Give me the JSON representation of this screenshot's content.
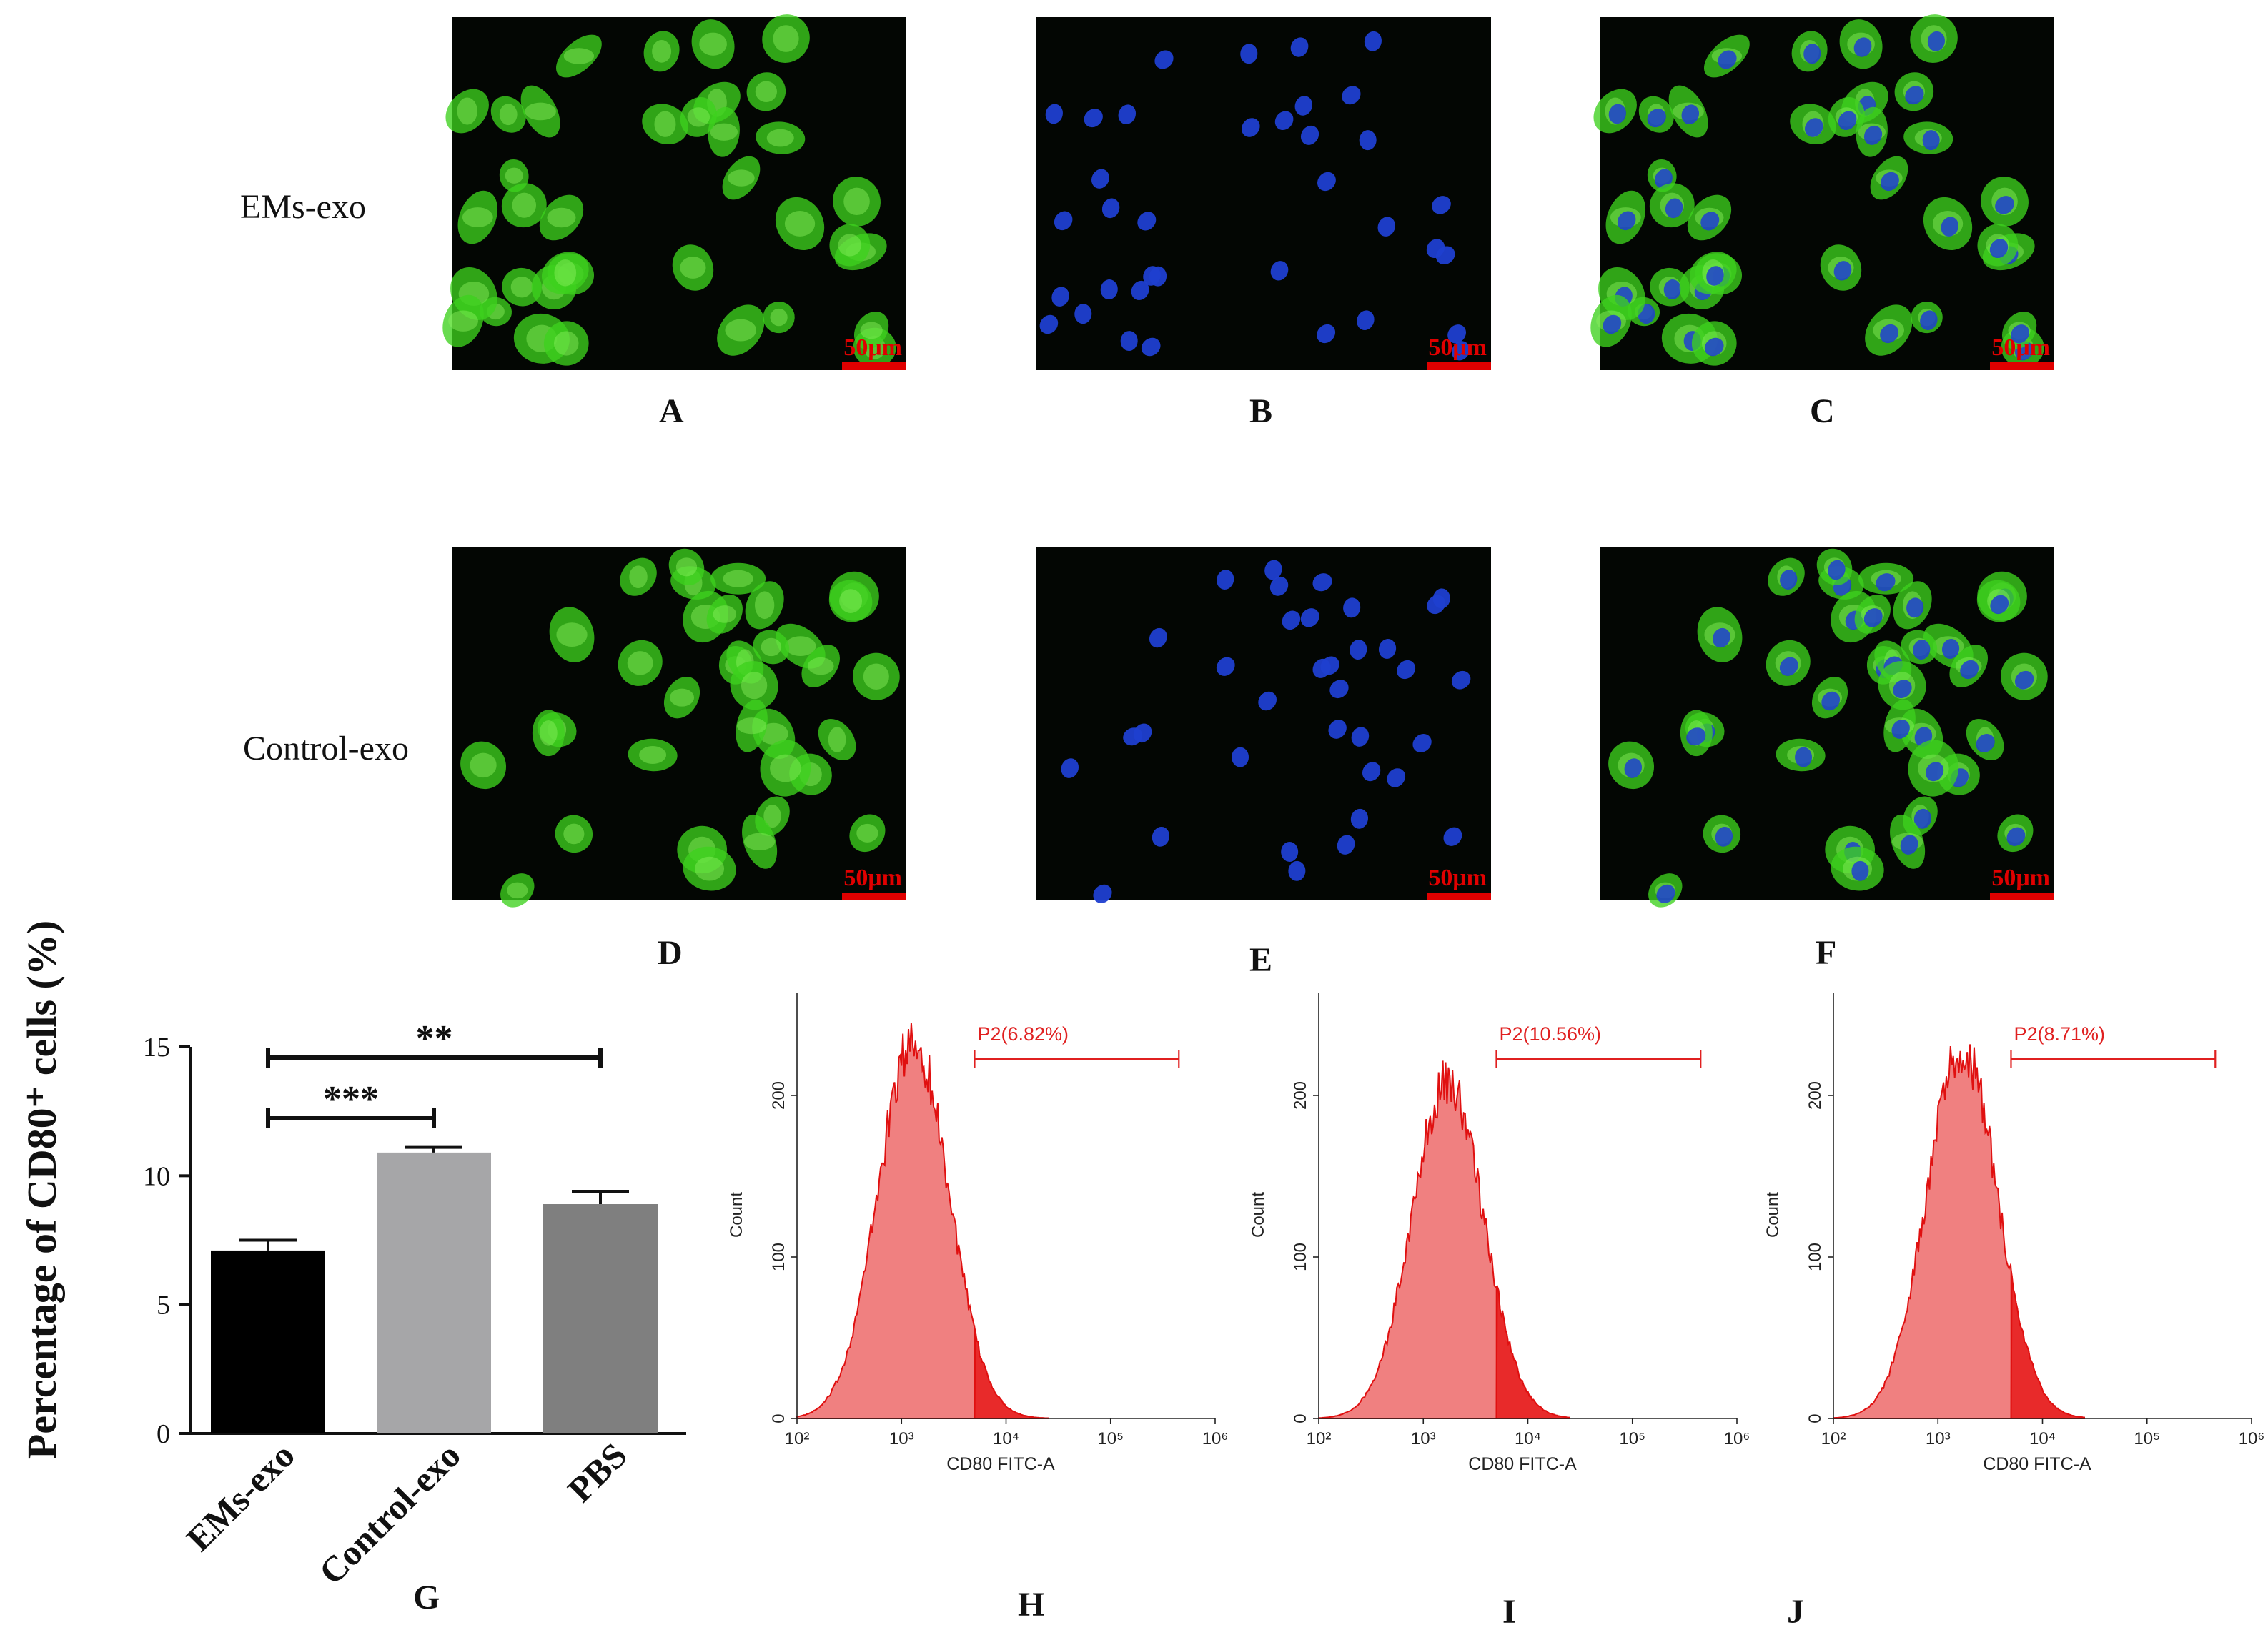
{
  "figure": {
    "row_labels": [
      "EMs-exo",
      "Control-exo"
    ],
    "panel_letters": [
      "A",
      "B",
      "C",
      "D",
      "E",
      "F",
      "G",
      "H",
      "I",
      "J"
    ],
    "scale_bar_text": "50μm",
    "micrographs": [
      {
        "panel": "A",
        "channel": "green"
      },
      {
        "panel": "B",
        "channel": "blue"
      },
      {
        "panel": "C",
        "channel": "merge"
      },
      {
        "panel": "D",
        "channel": "green"
      },
      {
        "panel": "E",
        "channel": "blue"
      },
      {
        "panel": "F",
        "channel": "merge"
      }
    ]
  },
  "chart_data": [
    {
      "type": "bar",
      "panel": "G",
      "categories": [
        "EMs-exo",
        "Control-exo",
        "PBS"
      ],
      "values": [
        7.1,
        10.9,
        8.9
      ],
      "errors": [
        0.4,
        0.2,
        0.5
      ],
      "bar_colors": [
        "#000000",
        "#a6a6a8",
        "#7f7f7f"
      ],
      "ylabel": "Percentage of CD80⁺ cells (%)",
      "ylim": [
        0,
        15
      ],
      "yticks": [
        "0",
        "5",
        "10",
        "15"
      ],
      "significance": [
        {
          "from": "EMs-exo",
          "to": "PBS",
          "label": "**"
        },
        {
          "from": "EMs-exo",
          "to": "Control-exo",
          "label": "***"
        }
      ]
    },
    {
      "type": "area",
      "panel": "H",
      "xlabel": "CD80 FITC-A",
      "ylabel": "Count",
      "x_scale": "log",
      "xlim": [
        100,
        1000000
      ],
      "ylim": [
        0,
        250
      ],
      "yticks": [
        "0",
        "100",
        "200"
      ],
      "xticks": [
        "10²",
        "10³",
        "10⁴",
        "10⁵",
        "10⁶"
      ],
      "gate": {
        "label": "P2(6.82%)",
        "from": 5000,
        "to": 450000
      },
      "peak_x": 1300,
      "peak_y": 240
    },
    {
      "type": "area",
      "panel": "I",
      "xlabel": "CD80 FITC-A",
      "ylabel": "Count",
      "x_scale": "log",
      "xlim": [
        100,
        1000000
      ],
      "ylim": [
        0,
        250
      ],
      "yticks": [
        "0",
        "100",
        "200"
      ],
      "xticks": [
        "10²",
        "10³",
        "10⁴",
        "10⁵",
        "10⁶"
      ],
      "gate": {
        "label": "P2(10.56%)",
        "from": 5000,
        "to": 450000
      },
      "peak_x": 1700,
      "peak_y": 215
    },
    {
      "type": "area",
      "panel": "J",
      "xlabel": "CD80 FITC-A",
      "ylabel": "Count",
      "x_scale": "log",
      "xlim": [
        100,
        1000000
      ],
      "ylim": [
        0,
        250
      ],
      "yticks": [
        "0",
        "100",
        "200"
      ],
      "xticks": [
        "10²",
        "10³",
        "10⁴",
        "10⁵",
        "10⁶"
      ],
      "gate": {
        "label": "P2(8.71%)",
        "from": 5000,
        "to": 450000
      },
      "peak_x": 1700,
      "peak_y": 235
    }
  ],
  "colors": {
    "gfp": "#3dd11e",
    "dapi": "#1f3fd0",
    "scale_bar": "#e00000",
    "hist_fill": "#f08080",
    "hist_line": "#e01010",
    "gate": "#e02020"
  }
}
